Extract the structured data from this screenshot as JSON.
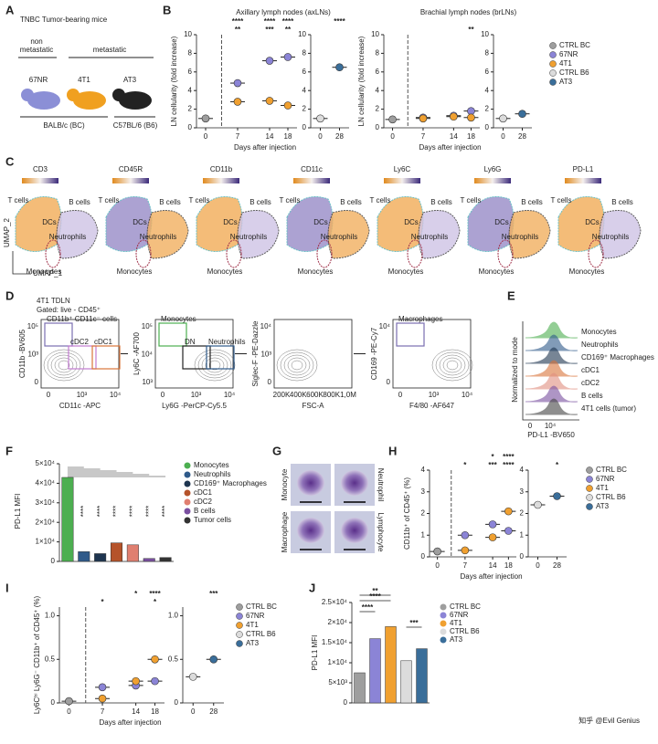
{
  "panels": {
    "A": {
      "letter": "A",
      "title": "TNBC Tumor-bearing mice",
      "nonmet": [
        "non",
        "metastatic"
      ],
      "met": "metastatic",
      "mice": [
        "67NR",
        "4T1",
        "AT3"
      ],
      "strains": [
        "BALB/c (BC)",
        "C57BL/6 (B6)"
      ]
    },
    "B": {
      "letter": "B",
      "legend": [
        {
          "name": "CTRL BC",
          "color": "#9e9e9e"
        },
        {
          "name": "67NR",
          "color": "#8b84d6"
        },
        {
          "name": "4T1",
          "color": "#f0a030"
        },
        {
          "name": "CTRL B6",
          "color": "#dcdcdc"
        },
        {
          "name": "AT3",
          "color": "#3a6e9a"
        }
      ],
      "plots": [
        {
          "title": "Axillary lymph nodes (axLNs)",
          "ylabel": "LN cellularity (fold increase)",
          "xlabel": "Days after injection",
          "x": [
            0,
            7,
            14,
            18
          ],
          "xlim": [
            -2,
            20
          ],
          "xticks": [
            0,
            7,
            14,
            18
          ],
          "ylim": [
            0,
            10
          ],
          "yticks": [
            0,
            2,
            4,
            6,
            8,
            10
          ],
          "series": [
            {
              "name": "CTRL BC",
              "color": "#9e9e9e",
              "values": [
                1.0,
                null,
                null,
                null
              ]
            },
            {
              "name": "67NR",
              "color": "#8b84d6",
              "values": [
                null,
                4.8,
                7.2,
                7.6
              ]
            },
            {
              "name": "4T1",
              "color": "#f0a030",
              "values": [
                null,
                2.8,
                2.9,
                2.4
              ]
            }
          ],
          "sig": [
            [
              {
                "at": 7,
                "label": "****"
              },
              {
                "at": 14,
                "label": "****"
              },
              {
                "at": 18,
                "label": "****"
              }
            ],
            [
              {
                "at": 7,
                "label": "**"
              },
              {
                "at": 14,
                "label": "***"
              },
              {
                "at": 18,
                "label": "**"
              }
            ]
          ]
        },
        {
          "x": [
            0,
            28
          ],
          "xlim": [
            -14,
            42
          ],
          "xticks": [
            0,
            28
          ],
          "ylim": [
            0,
            10
          ],
          "yticks": [
            0,
            2,
            4,
            6,
            8,
            10
          ],
          "series": [
            {
              "name": "CTRL B6",
              "color": "#dcdcdc",
              "values": [
                1.0,
                null
              ]
            },
            {
              "name": "AT3",
              "color": "#3a6e9a",
              "values": [
                null,
                6.5
              ]
            }
          ],
          "sig": [
            [
              {
                "at": 28,
                "label": "****"
              }
            ]
          ]
        },
        {
          "title": "Brachial lymph nodes (brLNs)",
          "ylabel": "LN cellularity (fold increase)",
          "xlabel": "Days after injection",
          "x": [
            0,
            7,
            14,
            18
          ],
          "xlim": [
            -2,
            20
          ],
          "xticks": [
            0,
            7,
            14,
            18
          ],
          "ylim": [
            0,
            10
          ],
          "yticks": [
            0,
            2,
            4,
            6,
            8,
            10
          ],
          "series": [
            {
              "name": "CTRL BC",
              "color": "#9e9e9e",
              "values": [
                0.9,
                null,
                null,
                null
              ]
            },
            {
              "name": "67NR",
              "color": "#8b84d6",
              "values": [
                null,
                1.1,
                1.3,
                1.8
              ]
            },
            {
              "name": "4T1",
              "color": "#f0a030",
              "values": [
                null,
                1.0,
                1.2,
                1.1
              ]
            }
          ],
          "sig": [
            [],
            [
              {
                "at": 18,
                "label": "**"
              }
            ]
          ]
        },
        {
          "x": [
            0,
            28
          ],
          "xlim": [
            -14,
            42
          ],
          "xticks": [
            0,
            28
          ],
          "ylim": [
            0,
            10
          ],
          "yticks": [
            0,
            2,
            4,
            6,
            8,
            10
          ],
          "series": [
            {
              "name": "CTRL B6",
              "color": "#dcdcdc",
              "values": [
                1.0,
                null
              ]
            },
            {
              "name": "AT3",
              "color": "#3a6e9a",
              "values": [
                null,
                1.5
              ]
            }
          ],
          "sig": []
        }
      ]
    },
    "C": {
      "letter": "C",
      "markers": [
        "CD3",
        "CD45R",
        "CD11b",
        "CD11c",
        "Ly6C",
        "Ly6G",
        "PD-L1"
      ],
      "clusters": [
        "T cells",
        "B cells",
        "DCs",
        "Neutrophils",
        "Monocytes"
      ],
      "axes": [
        "UMAP_2",
        "UMAP_1"
      ]
    },
    "D": {
      "letter": "D",
      "title": "4T1 TDLN",
      "gating": "Gated: live - CD45⁺",
      "plots": [
        {
          "ylabel": "CD11b -BV605",
          "xlabel": "CD11c -APC",
          "gates": [
            "CD11b⁺ CD11c⁻ cells",
            "cDC2",
            "cDC1"
          ],
          "xticklabels": [
            "0",
            "10³",
            "10⁴"
          ],
          "yticklabels": [
            "10⁵",
            "10³",
            "0"
          ]
        },
        {
          "ylabel": "Ly6C -AF700",
          "xlabel": "Ly6G -PerCP-Cy5.5",
          "gates": [
            "Monocytes",
            "DN",
            "Neutrophils"
          ],
          "xticklabels": [
            "0",
            "10³",
            "10⁴"
          ],
          "yticklabels": [
            "10⁵",
            "10⁴",
            "10³"
          ]
        },
        {
          "ylabel": "Siglec-F -PE-Dazzle",
          "xlabel": "FSC-A",
          "gates": [],
          "xticklabels": [
            "200K",
            "400K",
            "600K",
            "800K",
            "1,0M"
          ],
          "yticklabels": [
            "10⁴",
            "10³",
            "0"
          ]
        },
        {
          "ylabel": "CD169 -PE-Cy7",
          "xlabel": "F4/80 -AF647",
          "gates": [
            "Macrophages"
          ],
          "xticklabels": [
            "0",
            "10³",
            "10⁴"
          ],
          "yticklabels": [
            "10⁴",
            "0"
          ]
        }
      ]
    },
    "E": {
      "letter": "E",
      "ylabel": "Normalized to mode",
      "xlabel": "PD-L1 -BV650",
      "xticklabels": [
        "0",
        "10⁴"
      ],
      "populations": [
        {
          "name": "Monocytes",
          "color": "#4caf50"
        },
        {
          "name": "Neutrophils",
          "color": "#2f5a8a"
        },
        {
          "name": "CD169⁺ Macrophages",
          "color": "#1e3550"
        },
        {
          "name": "cDC1",
          "color": "#d9743a"
        },
        {
          "name": "cDC2",
          "color": "#e08f80"
        },
        {
          "name": "B cells",
          "color": "#7a4fa0"
        },
        {
          "name": "4T1 cells (tumor)",
          "color": "#444444"
        }
      ]
    },
    "F": {
      "letter": "F",
      "ylabel": "PD-L1 MFI",
      "categories": [
        "Monocytes",
        "Neutrophils",
        "CD169⁺ Macrophages",
        "cDC1",
        "cDC2",
        "B cells",
        "Tumor cells"
      ],
      "colors": [
        "#4caf50",
        "#2f5a8a",
        "#1e3550",
        "#b5532a",
        "#e07f70",
        "#7a4fa0",
        "#333333"
      ],
      "values": [
        43000,
        5000,
        4000,
        9500,
        8500,
        1500,
        2000
      ],
      "ylim": [
        0,
        50000
      ],
      "yticks": [
        0,
        {
          "value": 10000,
          "label": "1×10⁴"
        },
        {
          "value": 20000,
          "label": "2×10⁴"
        },
        {
          "value": 30000,
          "label": "3×10⁴"
        },
        {
          "value": 40000,
          "label": "4×10⁴"
        },
        {
          "value": 50000,
          "label": "5×10⁴"
        }
      ],
      "sig": [
        "****",
        "****",
        "****",
        "****",
        "****",
        "****"
      ]
    },
    "G": {
      "letter": "G",
      "cells": [
        "Monocyte",
        "Neutrophil",
        "Macrophage",
        "Lymphocyte"
      ]
    },
    "H": {
      "letter": "H",
      "legend": [
        {
          "name": "CTRL BC",
          "color": "#9e9e9e"
        },
        {
          "name": "67NR",
          "color": "#8b84d6"
        },
        {
          "name": "4T1",
          "color": "#f0a030"
        },
        {
          "name": "CTRL B6",
          "color": "#dcdcdc"
        },
        {
          "name": "AT3",
          "color": "#3a6e9a"
        }
      ],
      "plots": [
        {
          "ylabel": "CD11b⁺ of CD45⁺ (%)",
          "xlabel": "Days after injection",
          "x": [
            0,
            7,
            14,
            18
          ],
          "xlim": [
            -2,
            20
          ],
          "xticks": [
            0,
            7,
            14,
            18
          ],
          "ylim": [
            0,
            4
          ],
          "yticks": [
            0,
            1,
            2,
            3,
            4
          ],
          "series": [
            {
              "name": "CTRL BC",
              "color": "#9e9e9e",
              "values": [
                0.25,
                null,
                null,
                null
              ]
            },
            {
              "name": "67NR",
              "color": "#8b84d6",
              "values": [
                null,
                1.0,
                1.5,
                1.2
              ]
            },
            {
              "name": "4T1",
              "color": "#f0a030",
              "values": [
                null,
                0.3,
                0.9,
                2.1
              ]
            }
          ],
          "sig": [
            [
              {
                "at": 14,
                "label": "*"
              },
              {
                "at": 18,
                "label": "****"
              }
            ],
            [
              {
                "at": 7,
                "label": "*"
              },
              {
                "at": 14,
                "label": "***"
              },
              {
                "at": 18,
                "label": "****"
              }
            ]
          ]
        },
        {
          "x": [
            0,
            28
          ],
          "xlim": [
            -14,
            42
          ],
          "xticks": [
            0,
            28
          ],
          "ylim": [
            0,
            4
          ],
          "yticks": [
            0,
            1,
            2,
            3,
            4
          ],
          "series": [
            {
              "name": "CTRL B6",
              "color": "#dcdcdc",
              "values": [
                2.4,
                null
              ]
            },
            {
              "name": "AT3",
              "color": "#3a6e9a",
              "values": [
                null,
                2.8
              ]
            }
          ],
          "sig": [
            [],
            [
              {
                "at": 28,
                "label": "*"
              }
            ]
          ]
        }
      ]
    },
    "I": {
      "letter": "I",
      "legend": [
        {
          "name": "CTRL BC",
          "color": "#9e9e9e"
        },
        {
          "name": "67NR",
          "color": "#8b84d6"
        },
        {
          "name": "4T1",
          "color": "#f0a030"
        },
        {
          "name": "CTRL B6",
          "color": "#dcdcdc"
        },
        {
          "name": "AT3",
          "color": "#3a6e9a"
        }
      ],
      "plots": [
        {
          "ylabel": "Ly6Cʰⁱ Ly6G⁻ CD11b⁺ of CD45⁺ (%)",
          "xlabel": "Days after injection",
          "x": [
            0,
            7,
            14,
            18
          ],
          "xlim": [
            -2,
            20
          ],
          "xticks": [
            0,
            7,
            14,
            18
          ],
          "ylim": [
            0,
            1.1
          ],
          "yticks": [
            0,
            {
              "value": 0.5,
              "label": "0.5"
            },
            {
              "value": 1.0,
              "label": "1.0"
            }
          ],
          "series": [
            {
              "name": "CTRL BC",
              "color": "#9e9e9e",
              "values": [
                0.02,
                null,
                null,
                null
              ]
            },
            {
              "name": "67NR",
              "color": "#8b84d6",
              "values": [
                null,
                0.18,
                0.2,
                0.25
              ]
            },
            {
              "name": "4T1",
              "color": "#f0a030",
              "values": [
                null,
                0.05,
                0.25,
                0.5
              ]
            }
          ],
          "sig": [
            [
              {
                "at": 14,
                "label": "*"
              },
              {
                "at": 18,
                "label": "****"
              }
            ],
            [
              {
                "at": 7,
                "label": "*"
              },
              {
                "at": 18,
                "label": "*"
              }
            ]
          ]
        },
        {
          "x": [
            0,
            28
          ],
          "xlim": [
            -14,
            42
          ],
          "xticks": [
            0,
            28
          ],
          "ylim": [
            0,
            1.1
          ],
          "yticks": [
            0,
            {
              "value": 0.5,
              "label": "0.5"
            },
            {
              "value": 1.0,
              "label": "1.0"
            }
          ],
          "series": [
            {
              "name": "CTRL B6",
              "color": "#dcdcdc",
              "values": [
                0.3,
                null
              ]
            },
            {
              "name": "AT3",
              "color": "#3a6e9a",
              "values": [
                null,
                0.5
              ]
            }
          ],
          "sig": [
            [
              {
                "at": 28,
                "label": "***"
              }
            ]
          ]
        }
      ]
    },
    "J": {
      "letter": "J",
      "ylabel": "PD-L1 MFI",
      "categories": [
        "CTRL BC",
        "67NR",
        "4T1",
        "CTRL B6",
        "AT3"
      ],
      "colors": [
        "#9e9e9e",
        "#8b84d6",
        "#f0a030",
        "#dcdcdc",
        "#3a6e9a"
      ],
      "values": [
        7500,
        16000,
        19000,
        10500,
        13500
      ],
      "ylim": [
        0,
        25000
      ],
      "yticks": [
        0,
        {
          "value": 5000,
          "label": "5×10³"
        },
        {
          "value": 10000,
          "label": "1×10⁴"
        },
        {
          "value": 15000,
          "label": "1.5×10⁴"
        },
        {
          "value": 20000,
          "label": "2×10⁴"
        },
        {
          "value": 25000,
          "label": "2.5×10⁴"
        }
      ],
      "sig": [
        {
          "between": [
            "CTRL BC",
            "4T1"
          ],
          "label": "**"
        },
        {
          "between": [
            "CTRL BC",
            "4T1"
          ],
          "label": "****"
        },
        {
          "between": [
            "CTRL BC",
            "67NR"
          ],
          "label": "****"
        },
        {
          "between": [
            "CTRL B6",
            "AT3"
          ],
          "label": "***"
        }
      ]
    }
  },
  "watermark": "知乎 @Evil Genius"
}
